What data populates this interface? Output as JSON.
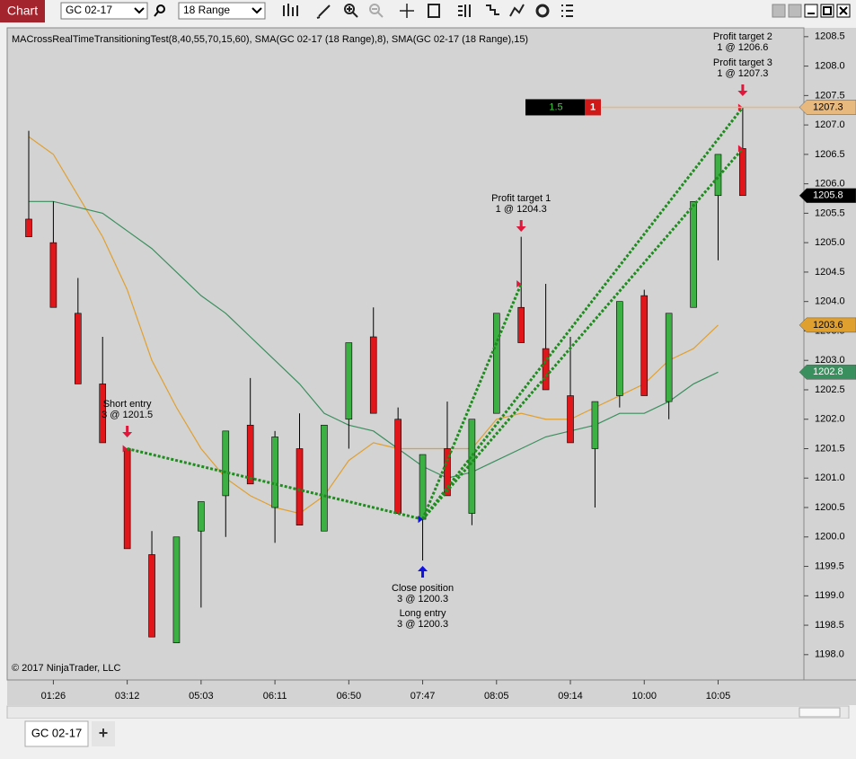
{
  "window_title": "Chart",
  "instrument": "GC 02-17",
  "bar_type": "18 Range",
  "tab": "GC 02-17",
  "add_tab": "+",
  "chart_data": {
    "type": "candlestick",
    "indicator_label": "MACrossRealTimeTransitioningTest(8,40,55,70,15,60), SMA(GC 02-17 (18 Range),8), SMA(GC 02-17 (18 Range),15)",
    "copyright": "© 2017 NinjaTrader, LLC",
    "categories": [
      null,
      "01:26",
      null,
      null,
      "03:12",
      null,
      null,
      "05:03",
      null,
      null,
      "06:11",
      null,
      null,
      "06:50",
      null,
      null,
      "07:47",
      null,
      null,
      "08:05",
      null,
      null,
      "09:14",
      null,
      null,
      "10:00",
      null,
      null,
      "10:05",
      null
    ],
    "open": [
      1205.4,
      1205.0,
      1203.8,
      1202.6,
      1201.5,
      1199.7,
      1198.2,
      1200.1,
      1200.7,
      1201.9,
      1200.5,
      1201.5,
      1200.1,
      1202.0,
      1203.4,
      1202.0,
      1200.3,
      1201.5,
      1200.4,
      1202.1,
      1203.9,
      1203.2,
      1202.4,
      1201.5,
      1202.4,
      1204.1,
      1202.3,
      1203.9,
      1205.8,
      1206.6
    ],
    "high": [
      1206.9,
      1205.7,
      1204.4,
      1203.4,
      1201.5,
      1200.1,
      1200.0,
      1200.6,
      1201.8,
      1202.7,
      1201.8,
      1202.1,
      1201.9,
      1203.3,
      1203.9,
      1202.2,
      1201.4,
      1202.3,
      1202.0,
      1203.8,
      1205.1,
      1204.3,
      1203.4,
      1202.3,
      1204.0,
      1204.2,
      1203.8,
      1205.7,
      1206.5,
      1207.3
    ],
    "low": [
      1205.1,
      1203.9,
      1202.6,
      1201.6,
      1199.8,
      1198.3,
      1198.2,
      1198.8,
      1200.0,
      1200.9,
      1199.9,
      1200.2,
      1200.1,
      1201.5,
      1202.1,
      1200.4,
      1199.6,
      1200.7,
      1200.2,
      1202.1,
      1203.3,
      1202.5,
      1201.6,
      1200.5,
      1202.2,
      1202.4,
      1202.0,
      1203.9,
      1204.7,
      1205.8
    ],
    "close": [
      1205.1,
      1203.9,
      1202.6,
      1201.6,
      1199.8,
      1198.3,
      1200.0,
      1200.6,
      1201.8,
      1200.9,
      1201.7,
      1200.2,
      1201.9,
      1203.3,
      1202.1,
      1200.4,
      1201.4,
      1200.7,
      1202.0,
      1203.8,
      1203.3,
      1202.5,
      1201.6,
      1202.3,
      1204.0,
      1202.4,
      1203.8,
      1205.7,
      1206.5,
      1205.8
    ],
    "up_color": "#3cb043",
    "down_color": "#e0161b",
    "series": [
      {
        "name": "SMA(8)",
        "color": "#e0a030",
        "values": [
          1206.8,
          1206.5,
          1205.8,
          1205.1,
          1204.2,
          1203.0,
          1202.2,
          1201.5,
          1201.0,
          1200.7,
          1200.5,
          1200.4,
          1200.7,
          1201.3,
          1201.6,
          1201.5,
          1201.5,
          1201.5,
          1201.5,
          1202.0,
          1202.1,
          1202.0,
          1202.0,
          1202.2,
          1202.4,
          1202.6,
          1203.0,
          1203.2,
          1203.6,
          null
        ]
      },
      {
        "name": "SMA(15)",
        "color": "#3a8f5e",
        "values": [
          1205.7,
          1205.7,
          1205.6,
          1205.5,
          1205.2,
          1204.9,
          1204.5,
          1204.1,
          1203.8,
          1203.4,
          1203.0,
          1202.6,
          1202.1,
          1201.9,
          1201.8,
          1201.5,
          1201.2,
          1201.0,
          1201.1,
          1201.3,
          1201.5,
          1201.7,
          1201.8,
          1201.9,
          1202.1,
          1202.1,
          1202.3,
          1202.6,
          1202.8,
          null
        ]
      }
    ],
    "ylim": [
      1197.57,
      1208.65
    ],
    "yticks": [
      1208.5,
      {
        "value": 1208,
        "label": "1208.0"
      },
      1207.5,
      {
        "value": 1207,
        "label": "1207.0"
      },
      1206.5,
      {
        "value": 1206,
        "label": "1206.0"
      },
      1205.5,
      {
        "value": 1205,
        "label": "1205.0"
      },
      1204.5,
      {
        "value": 1204,
        "label": "1204.0"
      },
      1203.5,
      {
        "value": 1203,
        "label": "1203.0"
      },
      1202.5,
      {
        "value": 1202,
        "label": "1202.0"
      },
      1201.5,
      {
        "value": 1201,
        "label": "1201.0"
      },
      1200.5,
      {
        "value": 1200,
        "label": "1200.0"
      },
      1199.5,
      {
        "value": 1199,
        "label": "1199.0"
      },
      1198.5,
      {
        "value": 1198,
        "label": "1198.0"
      }
    ],
    "price_markers": [
      {
        "value": 1207.3,
        "color": "#e8b97e"
      },
      {
        "value": 1205.8,
        "color": "#000000"
      },
      {
        "value": 1203.6,
        "color": "#e0a030"
      },
      {
        "value": 1202.8,
        "color": "#3a8f5e"
      }
    ],
    "executions": [
      {
        "text": "Short entry",
        "detail": "3 @ 1201.5",
        "price": 1201.5
      },
      {
        "text": "Close position",
        "detail": "3 @ 1200.3",
        "price": 1200.3
      },
      {
        "text": "Long entry",
        "detail": "3 @ 1200.3",
        "price": 1200.3
      },
      {
        "text": "Profit target 1",
        "detail": "1 @ 1204.3",
        "price": 1204.3
      },
      {
        "text": "Profit target 2",
        "detail": "1 @ 1206.6",
        "price": 1206.6
      },
      {
        "text": "Profit target 3",
        "detail": "1 @ 1207.3",
        "price": 1207.3
      }
    ],
    "position": {
      "pnl": 1.5,
      "quantity": 1
    }
  }
}
